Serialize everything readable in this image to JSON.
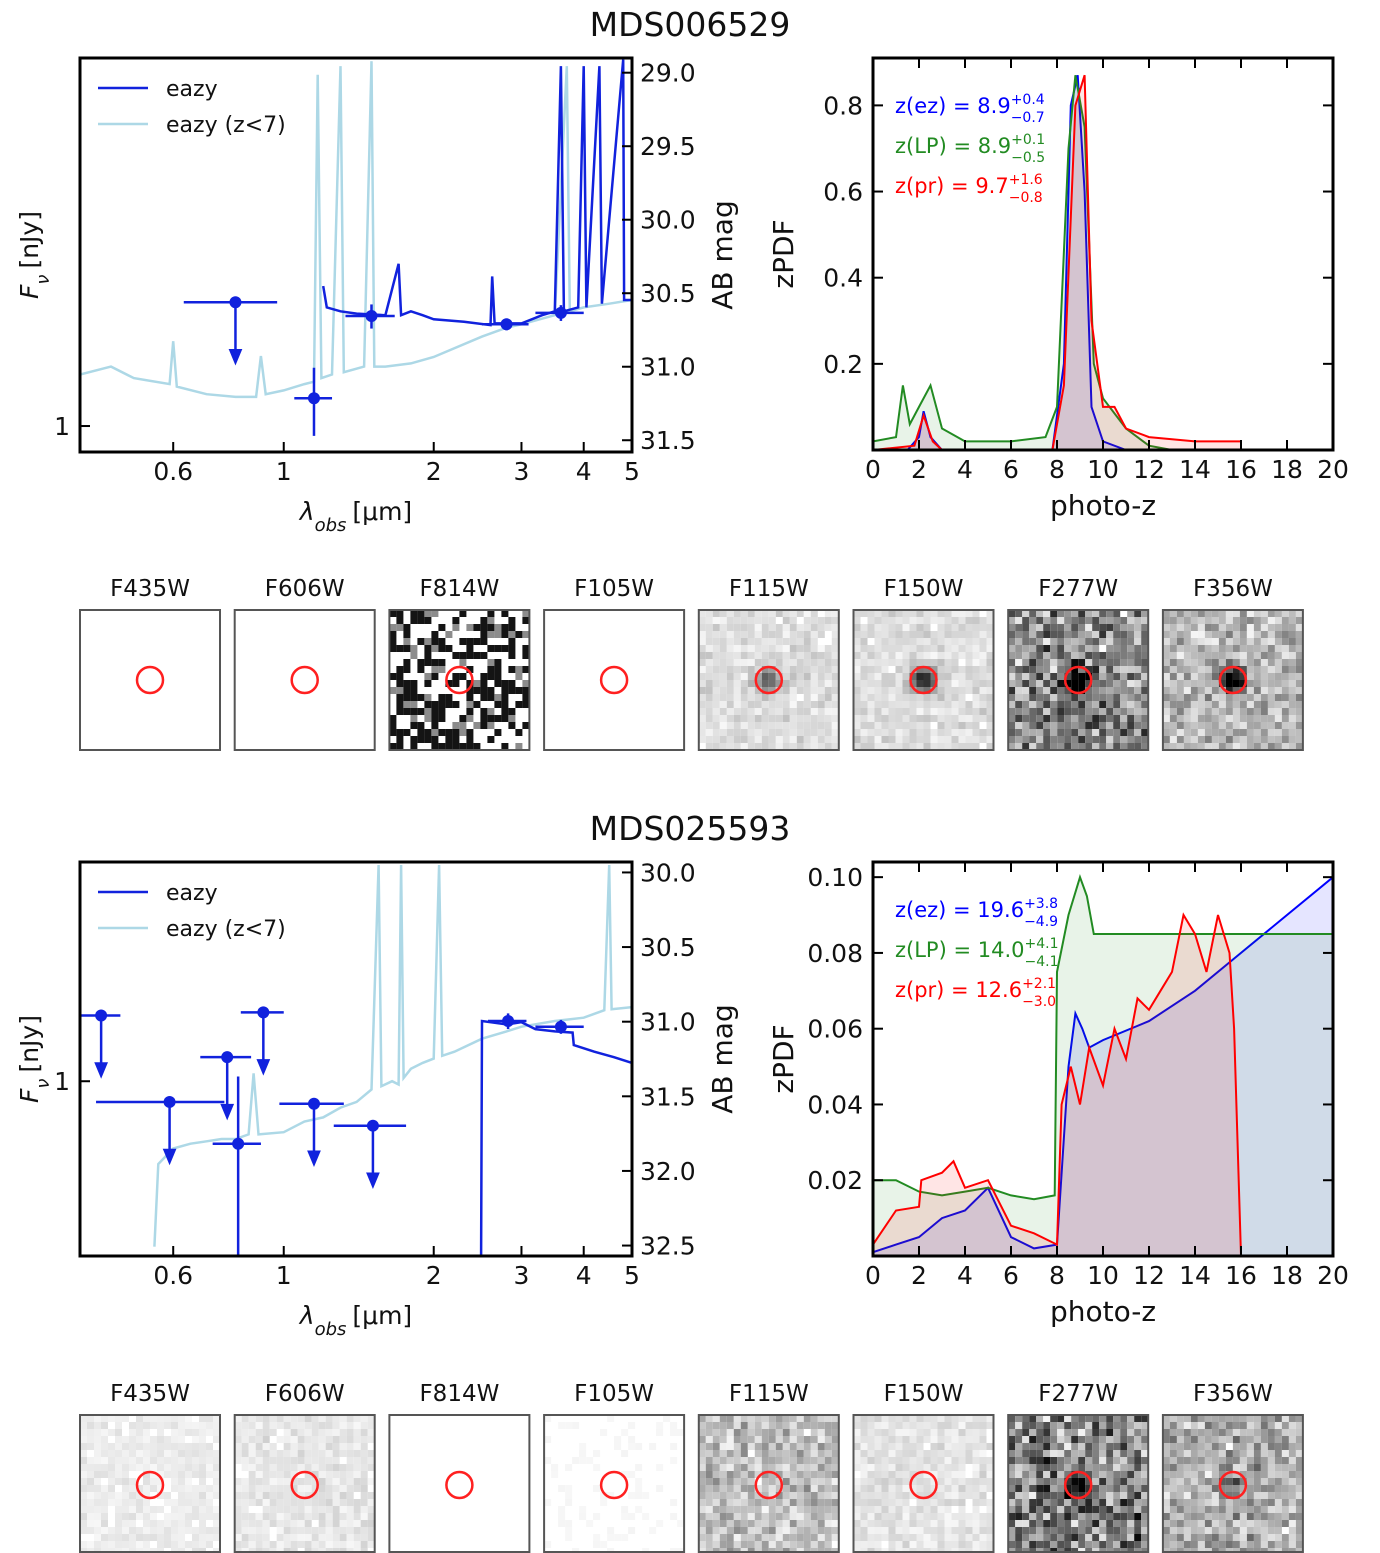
{
  "chart_data": [
    {
      "type": "line",
      "title": "MDS006529",
      "xlabel": {
        "symbol": "λ",
        "sub": "obs",
        "unit": "[μm]"
      },
      "ylabel": {
        "symbol": "F",
        "sub": "ν",
        "unit": "[nJy]"
      },
      "y2label": "AB mag",
      "xscale": "log",
      "yscale": "log",
      "xlim": [
        0.39,
        5
      ],
      "xticks": [
        0.6,
        1,
        2,
        3,
        4,
        5
      ],
      "ylim": [
        0.85,
        10
      ],
      "yticks": [
        1
      ],
      "y2lim": [
        31.58,
        28.9
      ],
      "y2ticks": [
        {
          "value": 29.0,
          "label": "29.0"
        },
        29.5,
        {
          "value": 30.0,
          "label": "30.0"
        },
        30.5,
        {
          "value": 31.0,
          "label": "31.0"
        },
        31.5
      ],
      "legend": "upper left",
      "series": [
        {
          "name": "eazy",
          "color": "#1122dd",
          "x": [
            1.2,
            1.22,
            1.3,
            1.4,
            1.6,
            1.7,
            1.72,
            1.8,
            1.9,
            2.0,
            2.3,
            2.6,
            2.62,
            2.65,
            3.0,
            3.3,
            3.5,
            3.6,
            3.65,
            3.9,
            4.0,
            4.05,
            4.3,
            4.35,
            4.8,
            4.82,
            5.0
          ],
          "values": [
            2.4,
            2.1,
            2.05,
            2.02,
            2.0,
            2.76,
            2.0,
            2.05,
            2.0,
            1.95,
            1.92,
            1.88,
            2.55,
            1.9,
            1.9,
            2.0,
            2.05,
            9.5,
            2.05,
            2.1,
            9.5,
            2.1,
            9.5,
            2.15,
            9.9,
            2.2,
            2.2
          ]
        },
        {
          "name": "eazy (z<7)",
          "color": "#add8e6",
          "x": [
            0.39,
            0.45,
            0.5,
            0.59,
            0.6,
            0.61,
            0.7,
            0.8,
            0.88,
            0.9,
            0.92,
            1.0,
            1.1,
            1.15,
            1.17,
            1.19,
            1.25,
            1.3,
            1.32,
            1.45,
            1.5,
            1.52,
            1.6,
            1.8,
            2.0,
            2.5,
            2.8,
            3.0,
            3.5,
            3.7,
            3.75,
            4.0,
            4.5,
            5.0
          ],
          "values": [
            1.38,
            1.45,
            1.35,
            1.3,
            1.7,
            1.28,
            1.22,
            1.2,
            1.2,
            1.55,
            1.22,
            1.25,
            1.3,
            1.32,
            9,
            1.35,
            1.38,
            9.5,
            1.4,
            1.45,
            9.8,
            1.45,
            1.45,
            1.48,
            1.54,
            1.75,
            1.85,
            1.89,
            2.0,
            9.5,
            2.05,
            2.1,
            2.15,
            2.2
          ]
        }
      ],
      "photometry": {
        "color": "#1122dd",
        "x": [
          0.8,
          1.15,
          1.5,
          2.8,
          3.6
        ],
        "values": [
          2.17,
          1.19,
          1.99,
          1.89,
          2.03
        ],
        "xerr": [
          0.17,
          0.1,
          0.17,
          0.3,
          0.4
        ],
        "yerr": [
          null,
          0.25,
          0.15,
          0.07,
          0.1
        ],
        "upper_limit": [
          true,
          false,
          false,
          false,
          false
        ]
      }
    },
    {
      "type": "area",
      "xlabel": "photo-z",
      "ylabel": "zPDF",
      "xlim": [
        0,
        20
      ],
      "xticks": [
        0,
        2,
        4,
        6,
        8,
        10,
        12,
        14,
        16,
        18,
        20
      ],
      "ylim": [
        0,
        0.91
      ],
      "yticks": [
        0.2,
        0.4,
        0.6,
        0.8
      ],
      "series": [
        {
          "name": "ez",
          "color": "#0000ff",
          "x": [
            0,
            1.5,
            2,
            2.2,
            2.5,
            3,
            7.8,
            8.3,
            8.6,
            8.9,
            9.2,
            9.5,
            10,
            11
          ],
          "values": [
            0,
            0,
            0.03,
            0.09,
            0.03,
            0,
            0,
            0.2,
            0.8,
            0.87,
            0.6,
            0.1,
            0.02,
            0
          ]
        },
        {
          "name": "LP",
          "color": "#228b22",
          "x": [
            0,
            1,
            1.3,
            1.6,
            2,
            2.5,
            3,
            4,
            6,
            7.5,
            8,
            8.5,
            8.8,
            9.2,
            9.6,
            10,
            11,
            12,
            13
          ],
          "values": [
            0.02,
            0.03,
            0.15,
            0.06,
            0.1,
            0.15,
            0.05,
            0.02,
            0.02,
            0.03,
            0.1,
            0.7,
            0.87,
            0.75,
            0.2,
            0.12,
            0.05,
            0.01,
            0
          ]
        },
        {
          "name": "pr",
          "color": "#ff0000",
          "x": [
            0,
            1.8,
            2.2,
            2.6,
            3,
            7.8,
            8.3,
            8.8,
            9.2,
            9.5,
            10,
            10.5,
            11,
            12,
            14,
            16
          ],
          "values": [
            0,
            0.01,
            0.08,
            0.02,
            0,
            0,
            0.15,
            0.8,
            0.87,
            0.3,
            0.1,
            0.1,
            0.05,
            0.03,
            0.02,
            0.02
          ]
        }
      ],
      "annotations": [
        {
          "text": "z(ez) = 8.9",
          "upper": "+0.4",
          "lower": "−0.7",
          "color": "#0000ff"
        },
        {
          "text": "z(LP) = 8.9",
          "upper": "+0.1",
          "lower": "−0.5",
          "color": "#228b22"
        },
        {
          "text": "z(pr) = 9.7",
          "upper": "+1.6",
          "lower": "−0.8",
          "color": "#ff0000"
        }
      ]
    },
    {
      "type": "line",
      "title": "MDS025593",
      "xlabel": {
        "symbol": "λ",
        "sub": "obs",
        "unit": "[μm]"
      },
      "ylabel": {
        "symbol": "F",
        "sub": "ν",
        "unit": "[nJy]"
      },
      "y2label": "AB mag",
      "xscale": "log",
      "yscale": "log",
      "xlim": [
        0.39,
        5
      ],
      "xticks": [
        0.6,
        1,
        2,
        3,
        4,
        5
      ],
      "ylim": [
        0.34,
        3.87
      ],
      "yticks": [
        1
      ],
      "y2lim": [
        32.57,
        29.93
      ],
      "y2ticks": [
        {
          "value": 30.0,
          "label": "30.0"
        },
        30.5,
        {
          "value": 31.0,
          "label": "31.0"
        },
        31.5,
        {
          "value": 32.0,
          "label": "32.0"
        },
        32.5
      ],
      "legend": "upper left",
      "series": [
        {
          "name": "eazy",
          "color": "#1122dd",
          "x": [
            2.49,
            2.5,
            2.8,
            3.0,
            3.2,
            3.5,
            3.8,
            3.82,
            4.2,
            4.6,
            5.0
          ],
          "values": [
            0.34,
            1.45,
            1.42,
            1.44,
            1.38,
            1.36,
            1.35,
            1.25,
            1.2,
            1.16,
            1.12
          ]
        },
        {
          "name": "eazy (z<7)",
          "color": "#add8e6",
          "x": [
            0.55,
            0.56,
            0.6,
            0.65,
            0.7,
            0.75,
            0.8,
            0.85,
            0.87,
            0.89,
            1.0,
            1.1,
            1.2,
            1.3,
            1.4,
            1.5,
            1.55,
            1.57,
            1.65,
            1.7,
            1.72,
            1.74,
            1.8,
            1.9,
            2.0,
            2.05,
            2.08,
            2.2,
            2.5,
            2.8,
            3.0,
            3.5,
            4.0,
            4.4,
            4.5,
            4.55,
            5.0
          ],
          "values": [
            0.36,
            0.6,
            0.66,
            0.68,
            0.69,
            0.7,
            0.7,
            0.72,
            1.05,
            0.72,
            0.73,
            0.78,
            0.8,
            0.85,
            0.88,
            0.95,
            3.8,
            0.97,
            1.0,
            0.98,
            3.8,
            1.02,
            1.08,
            1.12,
            1.15,
            3.8,
            1.17,
            1.2,
            1.3,
            1.36,
            1.4,
            1.45,
            1.48,
            1.55,
            3.8,
            1.56,
            1.58
          ]
        }
      ],
      "photometry": {
        "color": "#1122dd",
        "x": [
          0.43,
          0.91,
          0.77,
          0.59,
          1.15,
          1.51,
          0.81,
          2.82,
          3.6
        ],
        "values": [
          1.5,
          1.53,
          1.16,
          0.88,
          0.87,
          0.76,
          0.68,
          1.45,
          1.4
        ],
        "xerr": [
          0.04,
          0.09,
          0.09,
          0.17,
          0.17,
          0.25,
          0.09,
          0.25,
          0.4
        ],
        "yerr": [
          null,
          null,
          null,
          null,
          null,
          null,
          0.35,
          0.07,
          0.06
        ],
        "upper_limit": [
          true,
          true,
          true,
          true,
          true,
          true,
          false,
          false,
          false
        ]
      }
    },
    {
      "type": "area",
      "xlabel": "photo-z",
      "ylabel": "zPDF",
      "xlim": [
        0,
        20
      ],
      "xticks": [
        0,
        2,
        4,
        6,
        8,
        10,
        12,
        14,
        16,
        18,
        20
      ],
      "ylim": [
        0,
        0.104
      ],
      "yticks": [
        0.02,
        0.04,
        0.06,
        0.08,
        {
          "value": 0.1,
          "label": "0.10"
        }
      ],
      "series": [
        {
          "name": "ez",
          "color": "#0000ff",
          "x": [
            0,
            1,
            2,
            3,
            4,
            5,
            6,
            7,
            8,
            8.5,
            8.8,
            9.1,
            9.4,
            10,
            12,
            14,
            16,
            18,
            20
          ],
          "values": [
            0.001,
            0.003,
            0.005,
            0.01,
            0.012,
            0.018,
            0.005,
            0.002,
            0.003,
            0.05,
            0.064,
            0.06,
            0.055,
            0.057,
            0.062,
            0.07,
            0.08,
            0.09,
            0.1
          ]
        },
        {
          "name": "LP",
          "color": "#228b22",
          "x": [
            0,
            1,
            2,
            3,
            4,
            5,
            6,
            7,
            7.9,
            8,
            8.5,
            9,
            9.3,
            9.6,
            12,
            20
          ],
          "values": [
            0.02,
            0.02,
            0.017,
            0.016,
            0.017,
            0.018,
            0.016,
            0.015,
            0.016,
            0.075,
            0.09,
            0.1,
            0.095,
            0.085,
            0.085,
            0.085
          ]
        },
        {
          "name": "pr",
          "color": "#ff0000",
          "x": [
            0,
            1,
            2,
            2.1,
            3,
            3.5,
            4,
            5,
            6,
            7,
            8,
            8.2,
            8.6,
            9,
            9.4,
            10,
            10.5,
            11,
            11.5,
            12,
            12.5,
            13,
            13.5,
            14,
            14.5,
            15,
            15.5,
            15.7,
            16
          ],
          "values": [
            0.003,
            0.012,
            0.013,
            0.02,
            0.022,
            0.025,
            0.018,
            0.02,
            0.008,
            0.006,
            0.003,
            0.04,
            0.05,
            0.04,
            0.055,
            0.045,
            0.06,
            0.052,
            0.068,
            0.065,
            0.07,
            0.075,
            0.09,
            0.085,
            0.075,
            0.09,
            0.08,
            0.06,
            0
          ]
        }
      ],
      "annotations": [
        {
          "text": "z(ez) = 19.6",
          "upper": "+3.8",
          "lower": "−4.9",
          "color": "#0000ff"
        },
        {
          "text": "z(LP) = 14.0",
          "upper": "+4.1",
          "lower": "−4.1",
          "color": "#228b22"
        },
        {
          "text": "z(pr) = 12.6",
          "upper": "+2.1",
          "lower": "−3.0",
          "color": "#ff0000"
        }
      ]
    }
  ],
  "cutouts": [
    [
      "F435W",
      "F606W",
      "F814W",
      "F105W",
      "F115W",
      "F150W",
      "F277W",
      "F356W"
    ],
    [
      "F435W",
      "F606W",
      "F814W",
      "F105W",
      "F115W",
      "F150W",
      "F277W",
      "F356W"
    ]
  ]
}
